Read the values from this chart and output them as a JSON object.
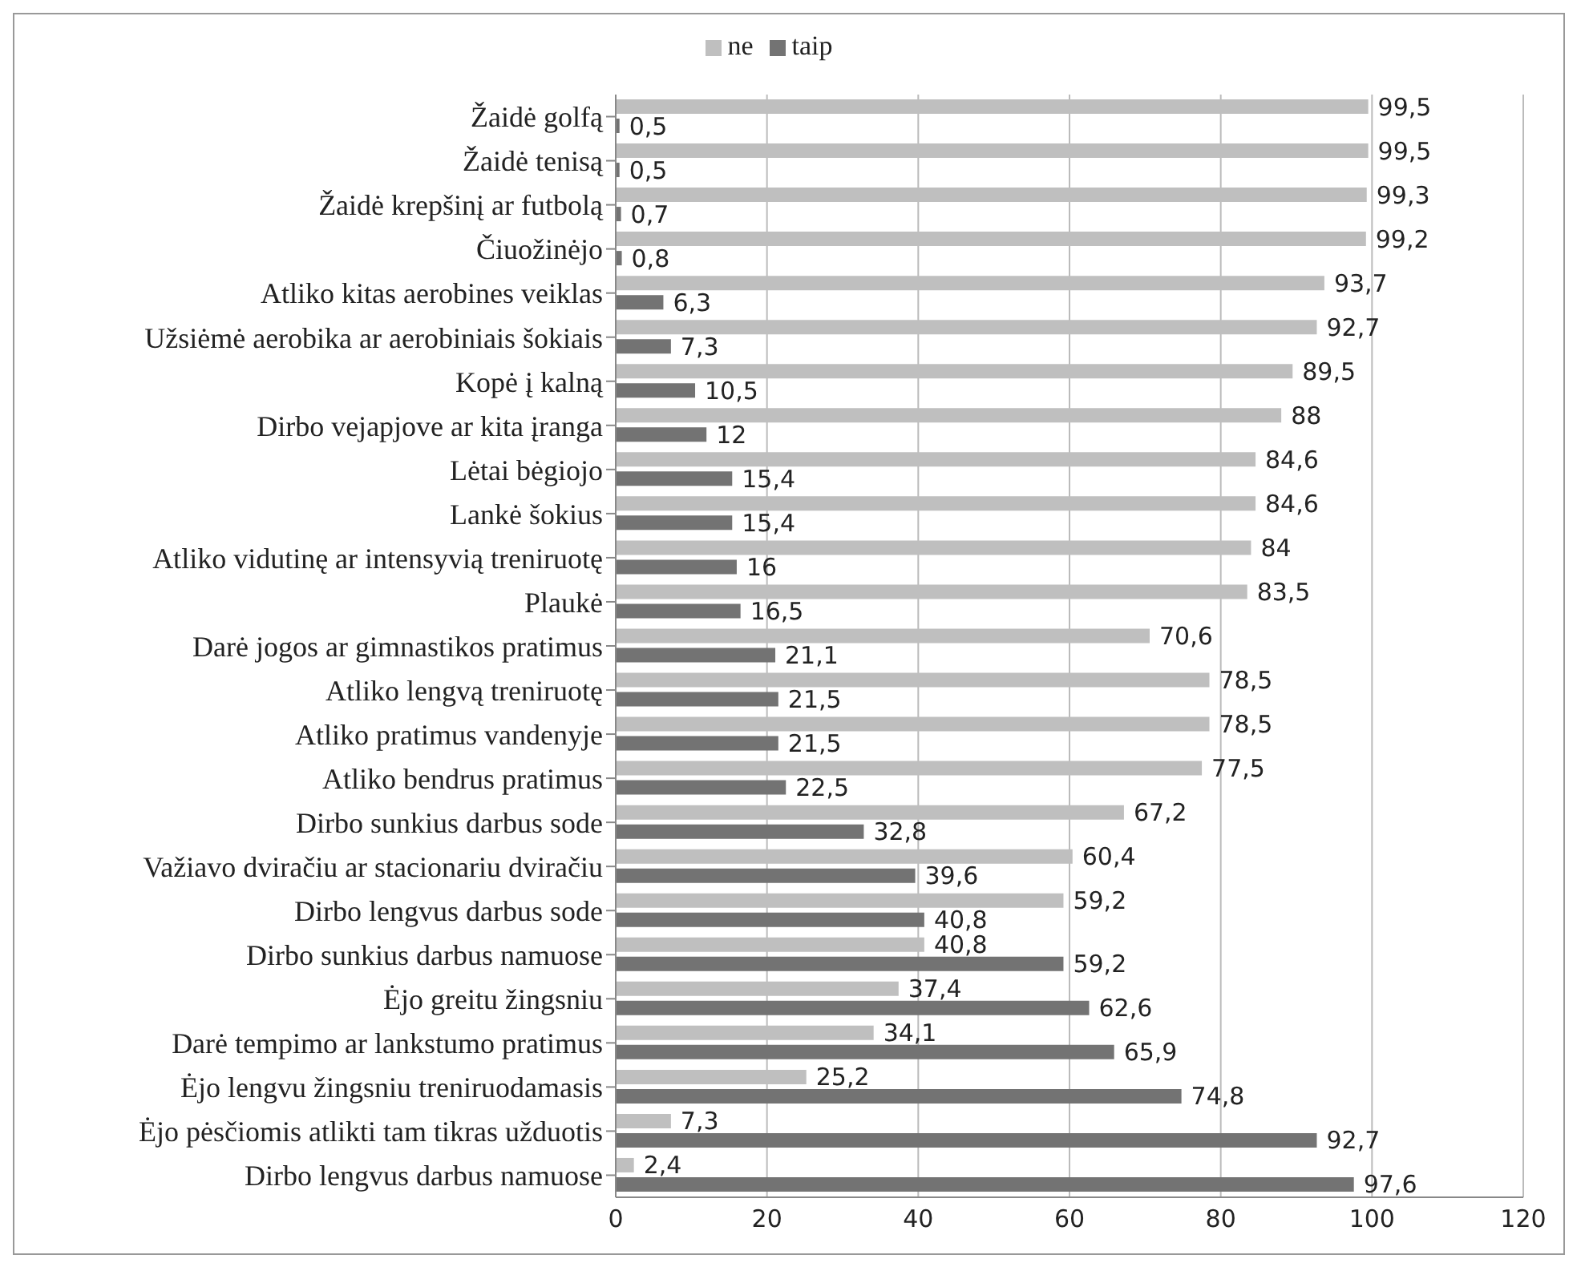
{
  "chart_data": {
    "type": "bar",
    "orientation": "horizontal",
    "categories": [
      "Žaidė golfą",
      "Žaidė tenisą",
      "Žaidė krepšinį ar futbolą",
      "Čiuožinėjo",
      "Atliko kitas aerobines veiklas",
      "Užsiėmė aerobika ar aerobiniais šokiais",
      "Kopė į kalną",
      "Dirbo vejapjove ar kita įranga",
      "Lėtai bėgiojo",
      "Lankė šokius",
      "Atliko vidutinę ar intensyvią treniruotę",
      "Plaukė",
      "Darė jogos ar gimnastikos pratimus",
      "Atliko lengvą treniruotę",
      "Atliko pratimus vandenyje",
      "Atliko bendrus pratimus",
      "Dirbo sunkius darbus sode",
      "Važiavo dviračiu ar stacionariu dviračiu",
      "Dirbo lengvus darbus sode",
      "Dirbo sunkius darbus namuose",
      "Ėjo greitu žingsniu",
      "Darė tempimo ar lankstumo pratimus",
      "Ėjo lengvu žingsniu treniruodamasis",
      "Ėjo pėsčiomis atlikti tam tikras užduotis",
      "Dirbo lengvus darbus namuose"
    ],
    "series": [
      {
        "name": "ne",
        "color": "#bfbfbf",
        "values": [
          99.5,
          99.5,
          99.3,
          99.2,
          93.7,
          92.7,
          89.5,
          88,
          84.6,
          84.6,
          84,
          83.5,
          70.6,
          78.5,
          78.5,
          77.5,
          67.2,
          60.4,
          59.2,
          40.8,
          37.4,
          34.1,
          25.2,
          7.3,
          2.4
        ],
        "value_labels": [
          "99,5",
          "99,5",
          "99,3",
          "99,2",
          "93,7",
          "92,7",
          "89,5",
          "88",
          "84,6",
          "84,6",
          "84",
          "83,5",
          "70,6",
          "78,5",
          "78,5",
          "77,5",
          "67,2",
          "60,4",
          "59,2",
          "40,8",
          "37,4",
          "34,1",
          "25,2",
          "7,3",
          "2,4"
        ]
      },
      {
        "name": "taip",
        "color": "#737373",
        "values": [
          0.5,
          0.5,
          0.7,
          0.8,
          6.3,
          7.3,
          10.5,
          12,
          15.4,
          15.4,
          16,
          16.5,
          21.1,
          21.5,
          21.5,
          22.5,
          32.8,
          39.6,
          40.8,
          59.2,
          62.6,
          65.9,
          74.8,
          92.7,
          97.6
        ],
        "value_labels": [
          "0,5",
          "0,5",
          "0,7",
          "0,8",
          "6,3",
          "7,3",
          "10,5",
          "12",
          "15,4",
          "15,4",
          "16",
          "16,5",
          "21,1",
          "21,5",
          "21,5",
          "22,5",
          "32,8",
          "39,6",
          "40,8",
          "59,2",
          "62,6",
          "65,9",
          "74,8",
          "92,7",
          "97,6"
        ]
      }
    ],
    "xlim": [
      0,
      120
    ],
    "xticks": [
      0,
      20,
      40,
      60,
      80,
      100,
      120
    ],
    "grid": "x",
    "legend": "top"
  }
}
